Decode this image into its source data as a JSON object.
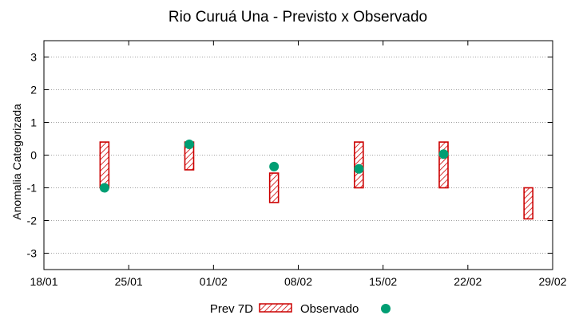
{
  "chart_data": {
    "type": "interval-scatter",
    "title": "Rio Curuá Una - Previsto x Observado",
    "ylabel": "Anomalia Categorizada",
    "xlabel": "",
    "x_range_days": [
      0,
      42
    ],
    "x_ticks": [
      {
        "day": 0,
        "label": "18/01"
      },
      {
        "day": 7,
        "label": "25/01"
      },
      {
        "day": 14,
        "label": "01/02"
      },
      {
        "day": 21,
        "label": "08/02"
      },
      {
        "day": 28,
        "label": "15/02"
      },
      {
        "day": 35,
        "label": "22/02"
      },
      {
        "day": 42,
        "label": "29/02"
      }
    ],
    "ylim": [
      -3.5,
      3.5
    ],
    "y_ticks": [
      -3,
      -2,
      -1,
      0,
      1,
      2,
      3
    ],
    "grid": true,
    "colors": {
      "forecast": "#cc0000",
      "observed": "#009e73",
      "grid": "#a0a0a0"
    },
    "series": [
      {
        "name": "Prev 7D",
        "kind": "range",
        "points": [
          {
            "day": 5,
            "low": -1.0,
            "high": 0.4
          },
          {
            "day": 12,
            "low": -0.45,
            "high": 0.4
          },
          {
            "day": 19,
            "low": -1.45,
            "high": -0.55
          },
          {
            "day": 26,
            "low": -1.0,
            "high": 0.4
          },
          {
            "day": 33,
            "low": -1.0,
            "high": 0.4
          },
          {
            "day": 40,
            "low": -1.95,
            "high": -1.0
          }
        ]
      },
      {
        "name": "Observado",
        "kind": "point",
        "points": [
          {
            "day": 5,
            "value": -1.0
          },
          {
            "day": 12,
            "value": 0.33
          },
          {
            "day": 19,
            "value": -0.35
          },
          {
            "day": 26,
            "value": -0.42
          },
          {
            "day": 33,
            "value": 0.03
          }
        ]
      }
    ],
    "legend": [
      {
        "label": "Prev 7D",
        "marker": "hatched-box"
      },
      {
        "label": "Observado",
        "marker": "circle"
      }
    ],
    "legend_position": "bottom"
  }
}
